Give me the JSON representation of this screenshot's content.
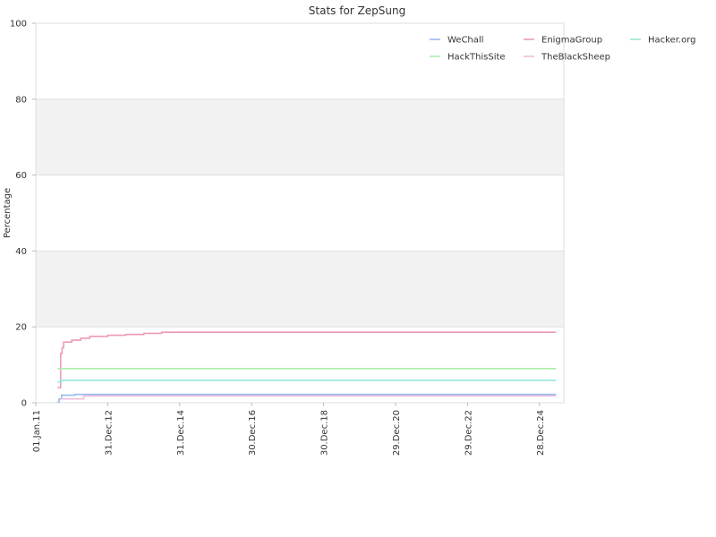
{
  "chart_data": {
    "type": "line",
    "title": "Stats for ZepSung",
    "xlabel": "",
    "ylabel": "Percentage",
    "ylim": [
      0,
      100
    ],
    "xlim": [
      "2011-01-01",
      "2025-09-01"
    ],
    "y_ticks": [
      "0",
      "20",
      "40",
      "60",
      "80",
      "100"
    ],
    "x_ticks": [
      {
        "date": "2011-01-01",
        "label": "01.Jan.11"
      },
      {
        "date": "2012-12-31",
        "label": "31.Dec.12"
      },
      {
        "date": "2014-12-31",
        "label": "31.Dec.14"
      },
      {
        "date": "2016-12-30",
        "label": "30.Dec.16"
      },
      {
        "date": "2018-12-30",
        "label": "30.Dec.18"
      },
      {
        "date": "2020-12-29",
        "label": "29.Dec.20"
      },
      {
        "date": "2022-12-29",
        "label": "29.Dec.22"
      },
      {
        "date": "2024-12-28",
        "label": "28.Dec.24"
      }
    ],
    "grid": "horizontal alternating bands",
    "band_color": "#f2f2f2",
    "legend_position": "top-right",
    "series": [
      {
        "name": "WeChall",
        "color": "#99bbee",
        "step": true,
        "points": [
          [
            "2011-08-10",
            0.2
          ],
          [
            "2011-08-25",
            1.0
          ],
          [
            "2011-09-20",
            2.0
          ],
          [
            "2012-02-01",
            2.2
          ],
          [
            "2025-06-15",
            2.2
          ]
        ]
      },
      {
        "name": "EnigmaGroup",
        "color": "#ee99bb",
        "step": true,
        "points": [
          [
            "2011-08-10",
            4.0
          ],
          [
            "2011-09-10",
            13.0
          ],
          [
            "2011-09-25",
            14.5
          ],
          [
            "2011-10-10",
            16.0
          ],
          [
            "2012-01-01",
            16.5
          ],
          [
            "2012-04-01",
            17.0
          ],
          [
            "2012-07-01",
            17.5
          ],
          [
            "2013-01-01",
            17.8
          ],
          [
            "2013-07-01",
            18.0
          ],
          [
            "2014-01-01",
            18.3
          ],
          [
            "2014-07-01",
            18.6
          ],
          [
            "2025-06-15",
            18.6
          ]
        ]
      },
      {
        "name": "Hacker.org",
        "color": "#99e6d9",
        "step": true,
        "points": [
          [
            "2011-08-10",
            5.5
          ],
          [
            "2011-09-15",
            5.9
          ],
          [
            "2025-06-15",
            5.9
          ]
        ]
      },
      {
        "name": "HackThisSite",
        "color": "#aaeeaa",
        "step": true,
        "points": [
          [
            "2011-08-10",
            9.0
          ],
          [
            "2025-06-15",
            9.0
          ]
        ]
      },
      {
        "name": "TheBlackSheep",
        "color": "#eebbdd",
        "step": true,
        "points": [
          [
            "2011-09-10",
            1.0
          ],
          [
            "2012-05-01",
            1.8
          ],
          [
            "2025-06-15",
            1.8
          ]
        ]
      }
    ],
    "legend_order": [
      "WeChall",
      "EnigmaGroup",
      "Hacker.org",
      "HackThisSite",
      "TheBlackSheep"
    ]
  }
}
